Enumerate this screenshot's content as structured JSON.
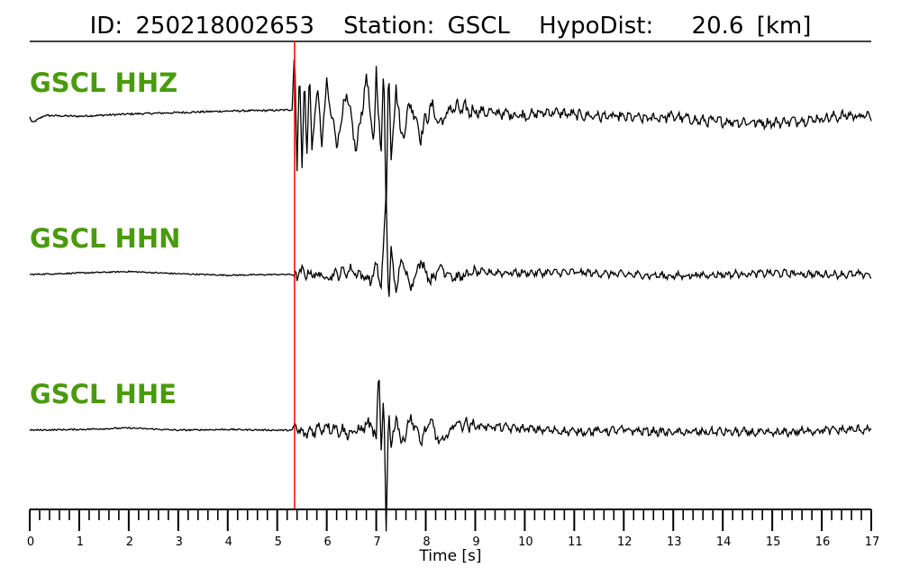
{
  "title": {
    "id_label": "ID:",
    "id_value": "250218002653",
    "station_label": "Station:",
    "station_value": "GSCL",
    "dist_label": "HypoDist:",
    "dist_value": "20.6",
    "dist_unit": "[km]"
  },
  "colors": {
    "trace": "#000000",
    "pick_line": "#ff0000",
    "channel_label": "#4a9a10",
    "axis": "#000000"
  },
  "chart_data": {
    "type": "line",
    "title": "ID: 250218002653   Station: GSCL   HypoDist:    20.6 [km]",
    "xlabel": "Time [s]",
    "ylabel": "",
    "xlim": [
      0,
      17
    ],
    "x_ticks": [
      "0",
      "1",
      "2",
      "3",
      "4",
      "5",
      "6",
      "7",
      "8",
      "9",
      "10",
      "11",
      "12",
      "13",
      "14",
      "15",
      "16",
      "17"
    ],
    "minor_tick_step": 0.2,
    "grid": false,
    "pick_time": 5.35,
    "series": [
      {
        "name": "GSCL HHZ",
        "t": [
          0,
          0.05,
          0.3,
          1,
          2,
          3,
          4,
          5,
          5.3,
          5.35,
          5.4,
          5.45,
          5.5,
          5.55,
          5.6,
          5.65,
          5.7,
          5.8,
          5.9,
          6.0,
          6.2,
          6.4,
          6.6,
          6.8,
          6.95,
          7.0,
          7.1,
          7.15,
          7.2,
          7.25,
          7.3,
          7.4,
          7.5,
          7.7,
          7.9,
          8.1,
          8.3,
          8.5,
          9,
          9.5,
          10,
          10.5,
          11,
          11.5,
          12,
          12.5,
          13,
          13.5,
          14,
          14.5,
          15,
          15.5,
          16,
          16.5,
          17
        ],
        "amp": [
          0,
          -0.08,
          0.02,
          0.01,
          0.04,
          0.06,
          0.08,
          0.09,
          0.1,
          0.95,
          -0.7,
          0.8,
          -0.8,
          0.6,
          -0.5,
          0.55,
          -0.4,
          0.35,
          -0.3,
          0.4,
          -0.35,
          0.3,
          -0.45,
          0.55,
          -0.4,
          0.6,
          -0.5,
          0.75,
          -1.3,
          0.85,
          -0.6,
          0.45,
          -0.3,
          0.2,
          -0.25,
          0.15,
          -0.1,
          0.12,
          0.08,
          0.05,
          0.02,
          0.07,
          0.03,
          0.01,
          0.0,
          -0.02,
          0.01,
          -0.05,
          -0.06,
          -0.07,
          -0.08,
          -0.05,
          -0.02,
          0.02,
          0.01
        ],
        "noise": 0.05
      },
      {
        "name": "GSCL HHN",
        "t": [
          0,
          1,
          2,
          3,
          4,
          5,
          5.3,
          5.35,
          5.5,
          6.0,
          6.5,
          6.9,
          7.0,
          7.1,
          7.15,
          7.2,
          7.25,
          7.3,
          7.4,
          7.5,
          7.7,
          7.9,
          8.1,
          8.3,
          8.6,
          9,
          10,
          11,
          12,
          13,
          14,
          15,
          16,
          17
        ],
        "amp": [
          0,
          0.02,
          0.04,
          0.01,
          -0.01,
          0.0,
          0.0,
          -0.02,
          0.03,
          -0.03,
          0.06,
          -0.08,
          0.15,
          -0.2,
          0.45,
          1.1,
          -0.45,
          0.35,
          -0.25,
          0.2,
          -0.15,
          0.18,
          -0.08,
          0.1,
          -0.05,
          0.03,
          0.02,
          0.03,
          0.0,
          -0.02,
          0.0,
          0.02,
          0.0,
          0.0
        ],
        "noise": 0.035
      },
      {
        "name": "GSCL HHE",
        "t": [
          0,
          1,
          2,
          3,
          4,
          5,
          5.3,
          5.35,
          5.5,
          6.0,
          6.5,
          6.9,
          7.0,
          7.05,
          7.1,
          7.15,
          7.2,
          7.25,
          7.3,
          7.4,
          7.5,
          7.7,
          7.9,
          8.1,
          8.3,
          8.6,
          9,
          10,
          11,
          12,
          13,
          14,
          15,
          16,
          17
        ],
        "amp": [
          0,
          0.01,
          0.03,
          0.0,
          0.01,
          0.0,
          0.0,
          0.08,
          -0.06,
          0.06,
          -0.05,
          0.1,
          -0.2,
          0.95,
          -0.3,
          0.4,
          -1.35,
          0.4,
          -0.3,
          0.25,
          -0.2,
          0.18,
          -0.15,
          0.12,
          -0.2,
          0.1,
          0.06,
          0.02,
          -0.02,
          0.0,
          -0.03,
          -0.02,
          -0.04,
          0.0,
          0.01
        ],
        "noise": 0.04
      }
    ]
  }
}
